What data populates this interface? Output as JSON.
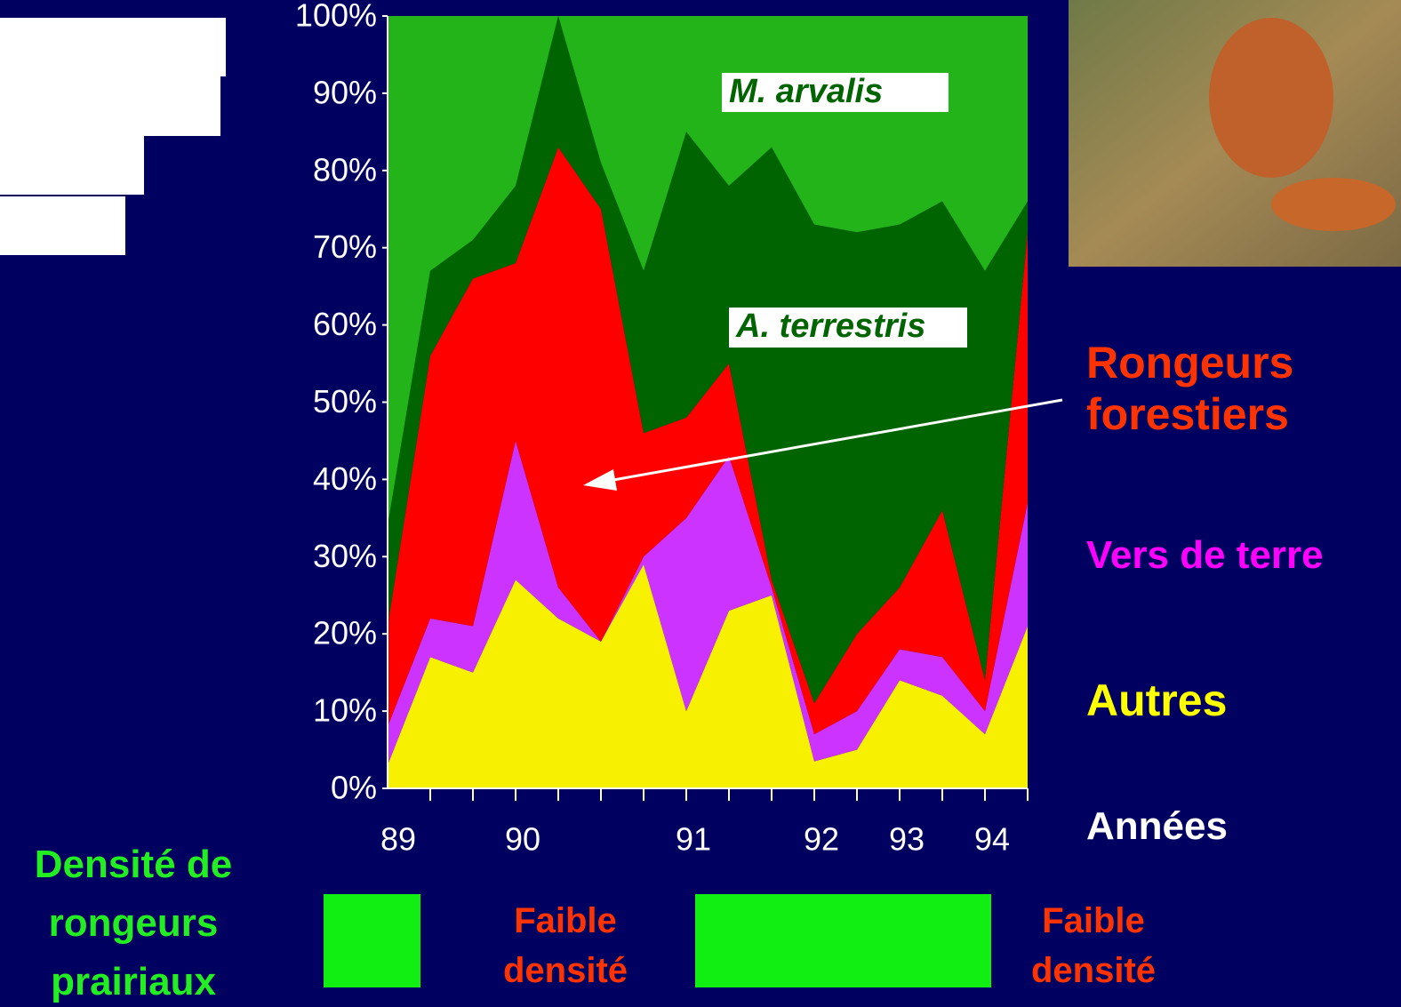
{
  "chart_data": {
    "type": "stacked_area",
    "categories": [
      "89",
      null,
      null,
      "90",
      null,
      null,
      null,
      "91",
      null,
      null,
      "92",
      null,
      "93",
      null,
      "94",
      null
    ],
    "x_label": "Années",
    "ylim": [
      0,
      100
    ],
    "yticks": [
      {
        "value": 0,
        "label": "0%"
      },
      {
        "value": 10,
        "label": "10%"
      },
      {
        "value": 20,
        "label": "20%"
      },
      {
        "value": 30,
        "label": "30%"
      },
      {
        "value": 40,
        "label": "40%"
      },
      {
        "value": 50,
        "label": "50%"
      },
      {
        "value": 60,
        "label": "60%"
      },
      {
        "value": 70,
        "label": "70%"
      },
      {
        "value": 80,
        "label": "80%"
      },
      {
        "value": 90,
        "label": "90%"
      },
      {
        "value": 100,
        "label": "100%"
      }
    ],
    "series": [
      {
        "name": "Autres",
        "color": "#f7f000",
        "label_color": "#ffff00",
        "values": [
          3,
          17,
          15,
          27,
          22,
          19,
          29,
          10,
          23,
          25,
          3.5,
          5,
          14,
          12,
          7,
          21
        ]
      },
      {
        "name": "Vers de terre",
        "color": "#cc33ff",
        "label_color": "#ff00ff",
        "values": [
          5,
          5,
          6,
          18,
          4,
          0,
          1,
          25,
          20,
          1,
          3.5,
          5,
          4,
          5,
          3,
          16
        ]
      },
      {
        "name": "Rongeurs forestiers",
        "color": "#ff0000",
        "label_color": "#ff3300",
        "values": [
          13,
          34,
          45,
          23,
          57,
          56,
          16,
          13,
          12,
          1,
          4,
          10,
          8,
          19,
          4,
          35
        ]
      },
      {
        "name": "A. terrestris",
        "color": "#006400",
        "label_color": "#006400",
        "values": [
          13,
          11,
          5,
          10,
          17,
          6,
          21,
          37,
          23,
          56,
          62,
          52,
          47,
          40,
          53,
          4
        ]
      },
      {
        "name": "M. arvalis",
        "color": "#22b418",
        "label_color": "#006400",
        "values": [
          66,
          33,
          29,
          22,
          0,
          19,
          33,
          15,
          22,
          17,
          27,
          28,
          27,
          24,
          33,
          24
        ]
      }
    ],
    "annotations": {
      "density_title": "Densité de rongeurs prairiaux",
      "low_density": [
        "Faible densité",
        "Faible densité"
      ]
    }
  }
}
